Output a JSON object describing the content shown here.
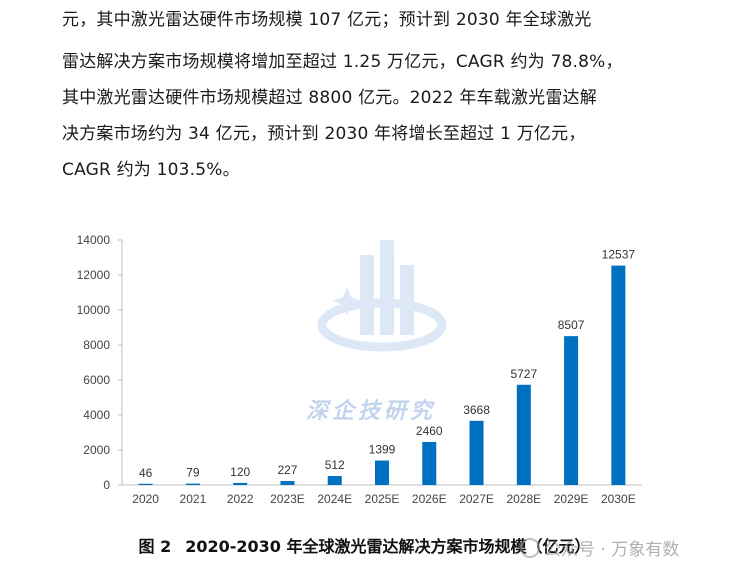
{
  "paragraph": {
    "lines": [
      "元，其中激光雷达硬件市场规模 107 亿元；预计到 2030 年全球激光",
      "雷达解决方案市场规模将增加至超过 1.25 万亿元，CAGR 约为 78.8%，",
      "其中激光雷达硬件市场规模超过 8800 亿元。2022 年车载激光雷达解",
      "决方案市场约为 34 亿元，预计到 2030 年将增长至超过 1 万亿元，",
      "CAGR 约为 103.5%。"
    ]
  },
  "chart_data": {
    "type": "bar",
    "title": "",
    "xlabel": "",
    "ylabel": "",
    "categories": [
      "2020",
      "2021",
      "2022",
      "2023E",
      "2024E",
      "2025E",
      "2026E",
      "2027E",
      "2028E",
      "2029E",
      "2030E"
    ],
    "values": [
      46,
      79,
      120,
      227,
      512,
      1399,
      2460,
      3668,
      5727,
      8507,
      12537
    ],
    "ylim": [
      0,
      14000
    ],
    "yticks": [
      0,
      2000,
      4000,
      6000,
      8000,
      10000,
      12000,
      14000
    ],
    "bar_color": "#0070C0",
    "grid": false,
    "legend": "none"
  },
  "caption": {
    "number": "图 2",
    "text": "2020-2030 年全球激光雷达解决方案市场规模（亿元）"
  },
  "watermark": {
    "text": "深企技研究"
  },
  "source": {
    "text": "公众号 · 万象有数"
  }
}
